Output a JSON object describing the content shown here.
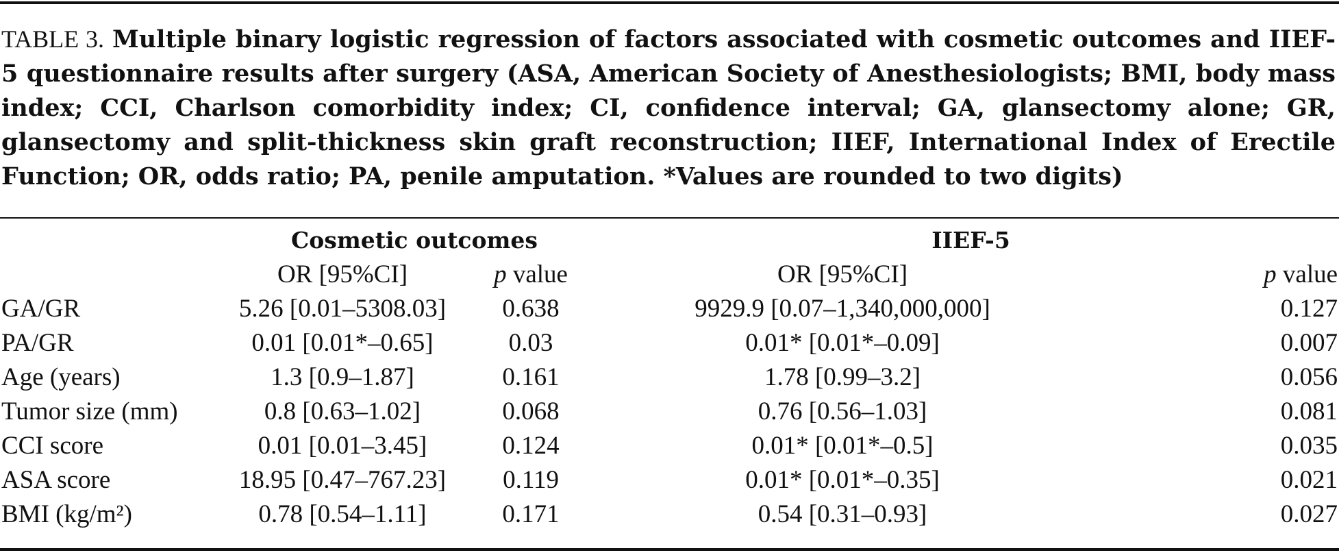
{
  "caption": {
    "label": "TABLE 3.",
    "text": "Multiple binary logistic regression of factors associated with cosmetic outcomes and IIEF-5 questionnaire results after surgery (ASA, American Society of Anesthesiologists; BMI, body mass index; CCI, Charlson comorbidity index; CI, confidence interval; GA, glansectomy alone; GR, glansectomy and split-thickness skin graft reconstruction; IIEF, International Index of Erectile Function; OR, odds ratio; PA, penile amputation. *Values are rounded to two digits)"
  },
  "groups": [
    "Cosmetic outcomes",
    "IIEF-5"
  ],
  "subheaders": {
    "or": "OR [95%CI]",
    "p_italic": "p",
    "p_rest": " value"
  },
  "rows": [
    {
      "label": "GA/GR",
      "or1": "5.26 [0.01–5308.03]",
      "p1": "0.638",
      "or2": "9929.9 [0.07–1,340,000,000]",
      "p2": "0.127"
    },
    {
      "label": "PA/GR",
      "or1": "0.01 [0.01*–0.65]",
      "p1": "0.03",
      "or2": "0.01* [0.01*–0.09]",
      "p2": "0.007"
    },
    {
      "label": "Age (years)",
      "or1": "1.3 [0.9–1.87]",
      "p1": "0.161",
      "or2": "1.78 [0.99–3.2]",
      "p2": "0.056"
    },
    {
      "label": "Tumor size (mm)",
      "or1": "0.8 [0.63–1.02]",
      "p1": "0.068",
      "or2": "0.76 [0.56–1.03]",
      "p2": "0.081"
    },
    {
      "label": "CCI score",
      "or1": "0.01 [0.01–3.45]",
      "p1": "0.124",
      "or2": "0.01* [0.01*–0.5]",
      "p2": "0.035"
    },
    {
      "label": "ASA score",
      "or1": "18.95 [0.47–767.23]",
      "p1": "0.119",
      "or2": "0.01* [0.01*–0.35]",
      "p2": "0.021"
    },
    {
      "label": "BMI (kg/m²)",
      "or1": "0.78 [0.54–1.11]",
      "p1": "0.171",
      "or2": "0.54 [0.31–0.93]",
      "p2": "0.027"
    }
  ]
}
